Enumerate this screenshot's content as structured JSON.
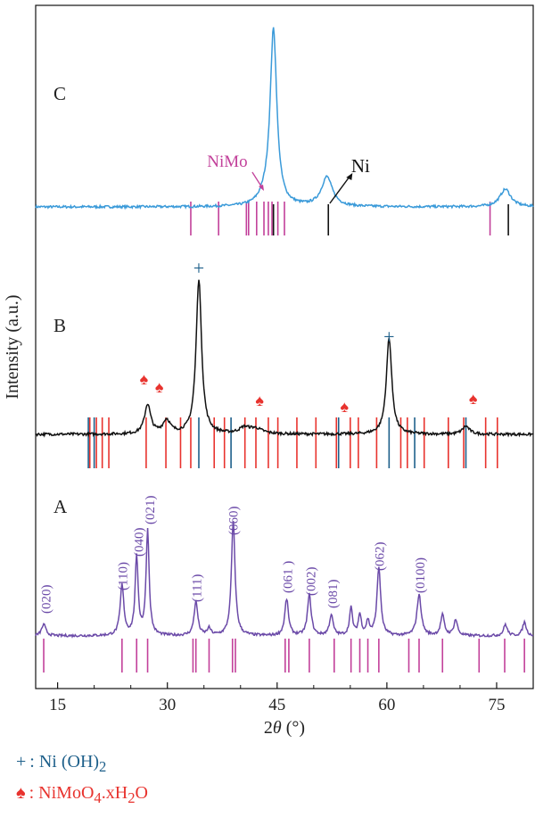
{
  "chart_data": {
    "type": "line",
    "xlabel_prefix": "2",
    "xlabel_theta": "θ",
    "xlabel_suffix": " (°)",
    "ylabel": "Intensity (a.u.)",
    "xlim": [
      12,
      80
    ],
    "xticks": [
      15,
      30,
      45,
      60,
      75
    ],
    "panels": [
      {
        "label": "C",
        "color": "#3a9ad9",
        "peaks": [
          [
            44.5,
            60,
            0.55
          ],
          [
            51.8,
            10,
            0.9
          ],
          [
            76.2,
            6,
            0.9
          ],
          [
            43.3,
            2,
            0.9
          ]
        ],
        "noise": 0.8,
        "ref_sets": [
          {
            "color": "#c2409a",
            "positions": [
              33.2,
              37.0,
              40.8,
              41.1,
              42.2,
              43.2,
              43.8,
              44.3,
              45.1,
              46.0,
              74.1
            ]
          },
          {
            "color": "#111111",
            "positions": [
              44.5,
              52.0,
              76.6
            ]
          }
        ],
        "annotations": [
          {
            "text": "NiMo",
            "color": "#c2409a",
            "x": 40.3
          },
          {
            "text": "Ni",
            "color": "#111111",
            "x": 53.9
          }
        ]
      },
      {
        "label": "B",
        "color": "#111111",
        "peaks": [
          [
            34.3,
            58,
            0.45
          ],
          [
            60.3,
            36,
            0.45
          ],
          [
            27.3,
            11,
            0.5
          ],
          [
            29.9,
            5,
            0.6
          ],
          [
            40.5,
            2,
            0.8
          ],
          [
            70.8,
            3,
            0.6
          ],
          [
            42.0,
            2,
            1.2
          ]
        ],
        "noise": 1.0,
        "ref_sets": [
          {
            "color": "#e8332e",
            "positions": [
              19.4,
              20.3,
              21.1,
              22.0,
              27.1,
              29.8,
              31.8,
              33.2,
              36.4,
              37.8,
              40.6,
              42.1,
              43.8,
              45.1,
              47.7,
              50.3,
              53.1,
              55.0,
              56.1,
              58.6,
              61.9,
              62.8,
              65.1,
              68.4,
              70.5,
              73.5,
              75.1
            ]
          },
          {
            "color": "#1d5f8a",
            "positions": [
              19.2,
              20.0,
              34.3,
              38.7,
              53.4,
              60.3,
              63.8,
              70.8
            ]
          }
        ],
        "plus_markers": [
          34.3,
          60.3
        ],
        "spade_markers": [
          26.8,
          28.9,
          42.6,
          54.2,
          71.8
        ]
      },
      {
        "label": "A",
        "color": "#6b4aa8",
        "peaks": [
          [
            13.1,
            5,
            0.35
          ],
          [
            23.8,
            22,
            0.3
          ],
          [
            25.8,
            34,
            0.25
          ],
          [
            27.3,
            46,
            0.25
          ],
          [
            33.9,
            15,
            0.3
          ],
          [
            35.7,
            3,
            0.3
          ],
          [
            39.0,
            50,
            0.3
          ],
          [
            46.3,
            16,
            0.3
          ],
          [
            49.4,
            18,
            0.3
          ],
          [
            52.4,
            9,
            0.3
          ],
          [
            55.1,
            12,
            0.25
          ],
          [
            56.3,
            9,
            0.25
          ],
          [
            57.4,
            6,
            0.25
          ],
          [
            58.9,
            30,
            0.3
          ],
          [
            64.4,
            18,
            0.35
          ],
          [
            67.6,
            9,
            0.3
          ],
          [
            69.4,
            7,
            0.3
          ],
          [
            76.2,
            5,
            0.3
          ],
          [
            78.8,
            6,
            0.3
          ]
        ],
        "noise": 1.1,
        "ref_sets": [
          {
            "color": "#c2409a",
            "positions": [
              13.1,
              23.8,
              25.8,
              27.3,
              33.5,
              33.9,
              35.7,
              38.9,
              39.3,
              46.1,
              46.6,
              49.4,
              52.8,
              55.1,
              56.3,
              57.4,
              58.9,
              63.0,
              64.4,
              67.6,
              72.6,
              76.1,
              78.8
            ]
          }
        ],
        "hkl_labels": [
          {
            "text": "(020)",
            "x": 13.4
          },
          {
            "text": "(110)",
            "x": 23.9
          },
          {
            "text": "(040)",
            "x": 26.1
          },
          {
            "text": "(021)",
            "x": 27.6
          },
          {
            "text": "(111)",
            "x": 34.0
          },
          {
            "text": "(060)",
            "x": 39.0
          },
          {
            "text": "(061 )",
            "x": 46.4
          },
          {
            "text": "(002)",
            "x": 49.6
          },
          {
            "text": "(081)",
            "x": 52.6
          },
          {
            "text": "(062)",
            "x": 59.0
          },
          {
            "text": "(0100)",
            "x": 64.5
          }
        ]
      }
    ],
    "legend": [
      {
        "symbol": "+",
        "text": ": Ni (OH)",
        "sub": "2",
        "color": "#1d5f8a"
      },
      {
        "symbol": "♠",
        "text": ": NiMoO",
        "sub": "4",
        "text2": ".xH",
        "sub2": "2",
        "text3": "O",
        "color": "#e8332e"
      }
    ]
  }
}
